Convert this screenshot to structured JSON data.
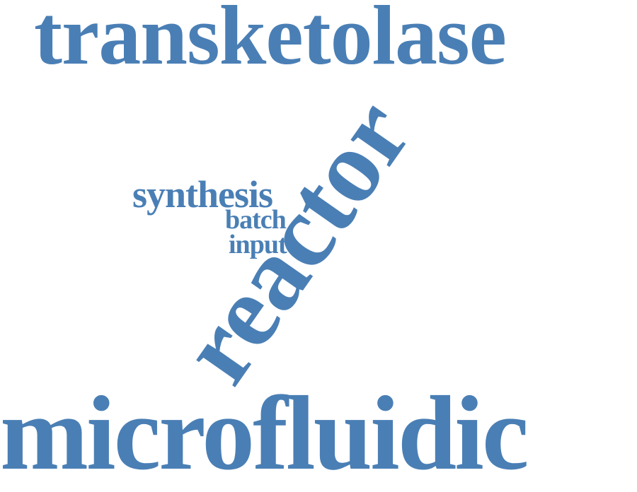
{
  "colors": {
    "word": "#4a7fb5",
    "background": "#ffffff"
  },
  "cloud": {
    "words": [
      {
        "key": "transketolase",
        "text": "transketolase"
      },
      {
        "key": "microfluidic",
        "text": "microfluidic"
      },
      {
        "key": "reactor",
        "text": "reactor"
      },
      {
        "key": "synthesis",
        "text": "synthesis"
      },
      {
        "key": "batch",
        "text": "batch"
      },
      {
        "key": "input",
        "text": "input"
      }
    ]
  }
}
